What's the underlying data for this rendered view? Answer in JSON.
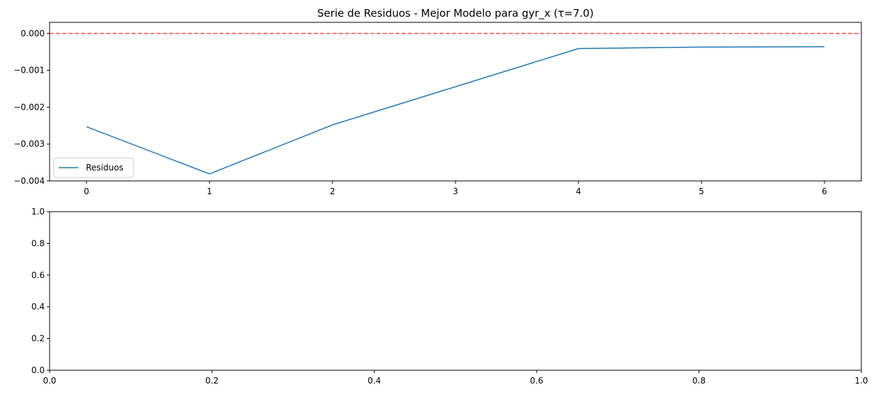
{
  "chart_data": [
    {
      "type": "line",
      "title": "Serie de Residuos - Mejor Modelo para gyr_x (τ=7.0)",
      "xlabel": "",
      "ylabel": "",
      "xlim": [
        -0.3,
        6.3
      ],
      "ylim": [
        -0.004,
        0.0003
      ],
      "x_ticks": [
        0,
        1,
        2,
        3,
        4,
        5,
        6
      ],
      "x_tick_labels": [
        "0",
        "1",
        "2",
        "3",
        "4",
        "5",
        "6"
      ],
      "y_ticks": [
        0.0,
        -0.001,
        -0.002,
        -0.003,
        -0.004
      ],
      "y_tick_labels": [
        "0.000",
        "−0.001",
        "−0.002",
        "−0.003",
        "−0.004"
      ],
      "series": [
        {
          "name": "Residuos",
          "color": "#1f77b4",
          "x": [
            0,
            1,
            2,
            4,
            5,
            6
          ],
          "y": [
            -0.00253,
            -0.00381,
            -0.00248,
            -0.00041,
            -0.00037,
            -0.00036
          ]
        }
      ],
      "reference_line": {
        "y": 0.0,
        "color": "#ff0000",
        "style": "dashed",
        "alpha": 0.7
      },
      "legend": {
        "position": "lower-left",
        "entries": [
          "Residuos"
        ]
      },
      "grid": false
    },
    {
      "type": "line",
      "title": "",
      "xlabel": "",
      "ylabel": "",
      "xlim": [
        0.0,
        1.0
      ],
      "ylim": [
        0.0,
        1.0
      ],
      "x_ticks": [
        0.0,
        0.2,
        0.4,
        0.6,
        0.8,
        1.0
      ],
      "x_tick_labels": [
        "0.0",
        "0.2",
        "0.4",
        "0.6",
        "0.8",
        "1.0"
      ],
      "y_ticks": [
        0.0,
        0.2,
        0.4,
        0.6,
        0.8,
        1.0
      ],
      "y_tick_labels": [
        "0.0",
        "0.2",
        "0.4",
        "0.6",
        "0.8",
        "1.0"
      ],
      "series": [],
      "grid": false
    }
  ]
}
